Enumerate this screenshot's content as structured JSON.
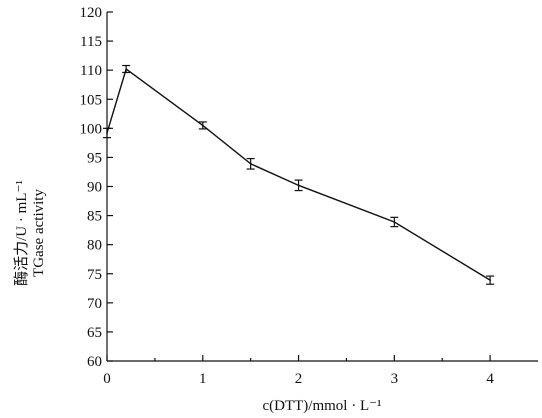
{
  "chart_data": {
    "type": "line",
    "xlabel": "c(DTT)/mmol · L⁻¹",
    "ylabel_line1": "酶活力/U · mL⁻¹",
    "ylabel_line2": "TGase activity",
    "xlim": [
      0,
      4.5
    ],
    "ylim": [
      60,
      120
    ],
    "xticks": [
      0,
      1,
      2,
      3,
      4
    ],
    "yticks": [
      60,
      65,
      70,
      75,
      80,
      85,
      90,
      95,
      100,
      105,
      110,
      115,
      120
    ],
    "grid": false,
    "series": [
      {
        "x": [
          0,
          0.2,
          1,
          1.5,
          2,
          3,
          4
        ],
        "y": [
          99.2,
          110.2,
          100.5,
          93.9,
          90.2,
          83.9,
          73.9
        ],
        "err": [
          0.8,
          0.6,
          0.6,
          0.9,
          0.9,
          0.8,
          0.7
        ]
      }
    ]
  }
}
